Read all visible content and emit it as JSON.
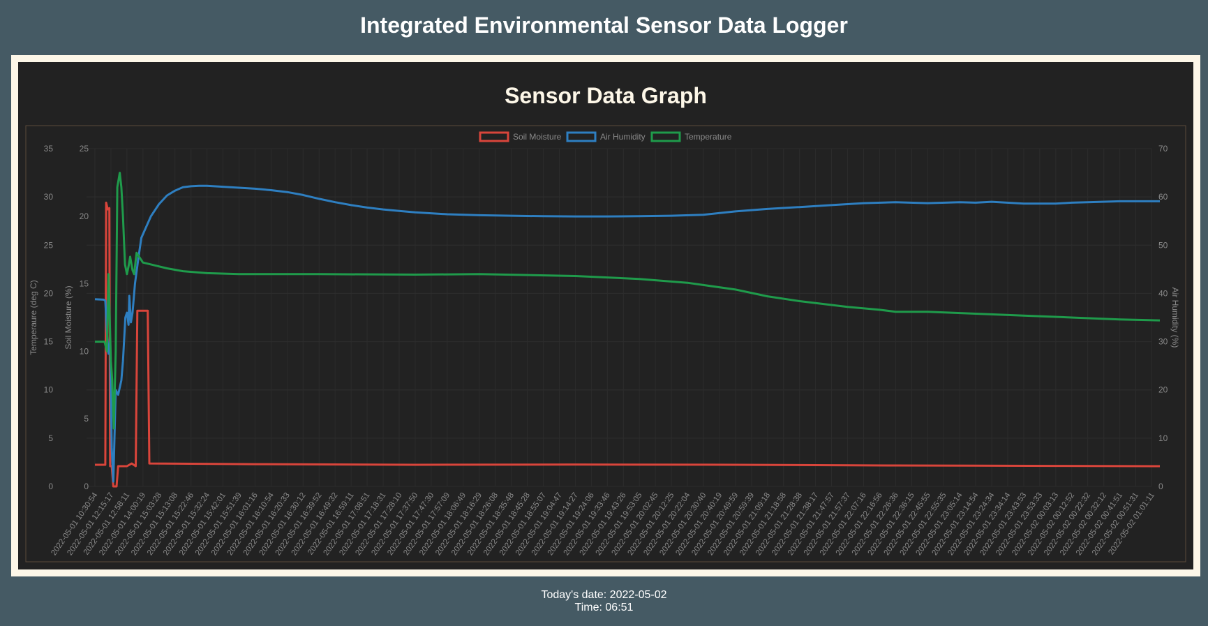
{
  "page": {
    "title": "Integrated Environmental Sensor Data Logger"
  },
  "footer": {
    "date_label": "Today's date: 2022-05-02",
    "time_label": "Time: 06:51"
  },
  "chart_data": {
    "type": "line",
    "title": "Sensor Data Graph",
    "legend": "top",
    "grid": true,
    "series": [
      {
        "name": "Soil Moisture",
        "axis": "Soil Moisture (%)",
        "color": "#d9453b"
      },
      {
        "name": "Air Humidity",
        "axis": "Air Humidity (%)",
        "color": "#2e7fc1"
      },
      {
        "name": "Temperature",
        "axis": "Temperaure (deg C)",
        "color": "#1f9b4b"
      }
    ],
    "axes": {
      "temperature": {
        "label": "Temperaure (deg C)",
        "range": [
          0,
          35
        ],
        "ticks": [
          "0",
          "5",
          "10",
          "15",
          "20",
          "25",
          "30",
          "35"
        ]
      },
      "soil": {
        "label": "Soil Moisture (%)",
        "range": [
          0,
          25
        ],
        "ticks": [
          "0",
          "5",
          "10",
          "15",
          "20",
          "25"
        ]
      },
      "humidity": {
        "label": "Air Humidity (%)",
        "range": [
          0,
          70
        ],
        "ticks": [
          "0",
          "10",
          "20",
          "30",
          "40",
          "50",
          "60",
          "70"
        ]
      }
    },
    "x_ticks": [
      "2022-05-01 10:30:54",
      "2022-05-01 12:15:17",
      "2022-05-01 12:58:11",
      "2022-05-01 14:00:19",
      "2022-05-01 15:03:28",
      "2022-05-01 15:13:08",
      "2022-05-01 15:22:46",
      "2022-05-01 15:32:24",
      "2022-05-01 15:42:01",
      "2022-05-01 15:51:39",
      "2022-05-01 16:01:16",
      "2022-05-01 16:10:54",
      "2022-05-01 16:20:33",
      "2022-05-01 16:30:12",
      "2022-05-01 16:39:52",
      "2022-05-01 16:49:32",
      "2022-05-01 16:59:11",
      "2022-05-01 17:08:51",
      "2022-05-01 17:18:31",
      "2022-05-01 17:28:10",
      "2022-05-01 17:37:50",
      "2022-05-01 17:47:30",
      "2022-05-01 17:57:09",
      "2022-05-01 18:06:49",
      "2022-05-01 18:16:29",
      "2022-05-01 18:26:08",
      "2022-05-01 18:35:48",
      "2022-05-01 18:45:28",
      "2022-05-01 18:55:07",
      "2022-05-01 19:04:47",
      "2022-05-01 19:14:27",
      "2022-05-01 19:24:06",
      "2022-05-01 19:33:46",
      "2022-05-01 19:43:26",
      "2022-05-01 19:53:05",
      "2022-05-01 20:02:45",
      "2022-05-01 20:12:25",
      "2022-05-01 20:22:04",
      "2022-05-01 20:30:40",
      "2022-05-01 20:40:19",
      "2022-05-01 20:49:59",
      "2022-05-01 20:59:39",
      "2022-05-01 21:09:18",
      "2022-05-01 21:18:58",
      "2022-05-01 21:28:38",
      "2022-05-01 21:38:17",
      "2022-05-01 21:47:57",
      "2022-05-01 21:57:37",
      "2022-05-01 22:07:16",
      "2022-05-01 22:16:56",
      "2022-05-01 22:26:36",
      "2022-05-01 22:36:15",
      "2022-05-01 22:45:55",
      "2022-05-01 22:55:35",
      "2022-05-01 23:05:14",
      "2022-05-01 23:14:54",
      "2022-05-01 23:24:34",
      "2022-05-01 23:34:14",
      "2022-05-01 23:43:53",
      "2022-05-01 23:53:33",
      "2022-05-02 00:03:13",
      "2022-05-02 00:12:52",
      "2022-05-02 00:22:32",
      "2022-05-02 00:32:12",
      "2022-05-02 00:41:51",
      "2022-05-02 00:51:31",
      "2022-05-02 01:01:11"
    ],
    "temperature_points": [
      [
        0,
        15
      ],
      [
        0.6,
        15
      ],
      [
        0.75,
        14
      ],
      [
        0.85,
        22
      ],
      [
        1.0,
        13
      ],
      [
        1.08,
        11
      ],
      [
        1.18,
        6
      ],
      [
        1.3,
        14
      ],
      [
        1.4,
        31
      ],
      [
        1.55,
        32.5
      ],
      [
        1.65,
        31
      ],
      [
        1.75,
        28
      ],
      [
        1.88,
        23
      ],
      [
        2.0,
        22
      ],
      [
        2.1,
        22.8
      ],
      [
        2.2,
        23.8
      ],
      [
        2.35,
        22.4
      ],
      [
        2.45,
        22
      ],
      [
        2.6,
        24.2
      ],
      [
        2.8,
        23.7
      ],
      [
        3.0,
        23.2
      ],
      [
        3.5,
        23
      ],
      [
        4.5,
        22.6
      ],
      [
        5.5,
        22.3
      ],
      [
        7,
        22.1
      ],
      [
        9,
        22
      ],
      [
        14,
        22
      ],
      [
        20,
        21.95
      ],
      [
        24,
        22
      ],
      [
        30,
        21.8
      ],
      [
        34,
        21.5
      ],
      [
        37,
        21.1
      ],
      [
        40,
        20.4
      ],
      [
        42,
        19.7
      ],
      [
        44,
        19.2
      ],
      [
        46,
        18.8
      ],
      [
        47,
        18.6
      ],
      [
        49,
        18.3
      ],
      [
        50,
        18.1
      ],
      [
        52,
        18.1
      ],
      [
        55,
        17.9
      ],
      [
        58,
        17.7
      ],
      [
        61,
        17.5
      ],
      [
        64,
        17.3
      ],
      [
        66.5,
        17.2
      ]
    ],
    "soil_points": [
      [
        0,
        1.6
      ],
      [
        0.65,
        1.6
      ],
      [
        0.7,
        21
      ],
      [
        0.8,
        20.5
      ],
      [
        0.9,
        20.6
      ],
      [
        0.95,
        1.5
      ],
      [
        1.05,
        1.5
      ],
      [
        1.15,
        0
      ],
      [
        1.35,
        0
      ],
      [
        1.45,
        1.5
      ],
      [
        2.0,
        1.5
      ],
      [
        2.3,
        1.7
      ],
      [
        2.55,
        1.5
      ],
      [
        2.65,
        13
      ],
      [
        3.3,
        13
      ],
      [
        3.4,
        1.7
      ],
      [
        10,
        1.65
      ],
      [
        20,
        1.6
      ],
      [
        30,
        1.62
      ],
      [
        40,
        1.6
      ],
      [
        50,
        1.55
      ],
      [
        60,
        1.52
      ],
      [
        66.5,
        1.5
      ]
    ],
    "humidity_points": [
      [
        0,
        38.8
      ],
      [
        0.55,
        38.7
      ],
      [
        0.65,
        38.5
      ],
      [
        0.75,
        32
      ],
      [
        0.85,
        27.5
      ],
      [
        0.95,
        30
      ],
      [
        1.05,
        8
      ],
      [
        1.15,
        1
      ],
      [
        1.3,
        20
      ],
      [
        1.45,
        19
      ],
      [
        1.55,
        20.5
      ],
      [
        1.65,
        22
      ],
      [
        1.75,
        26
      ],
      [
        1.85,
        32
      ],
      [
        1.9,
        35
      ],
      [
        2.0,
        36
      ],
      [
        2.1,
        33.5
      ],
      [
        2.15,
        39.5
      ],
      [
        2.25,
        34
      ],
      [
        2.35,
        36
      ],
      [
        2.5,
        42
      ],
      [
        2.7,
        47
      ],
      [
        2.9,
        51.5
      ],
      [
        3.1,
        53
      ],
      [
        3.5,
        56
      ],
      [
        4,
        58.5
      ],
      [
        4.5,
        60.3
      ],
      [
        5,
        61.3
      ],
      [
        5.5,
        62
      ],
      [
        6,
        62.2
      ],
      [
        6.5,
        62.3
      ],
      [
        7,
        62.3
      ],
      [
        8,
        62.1
      ],
      [
        9,
        61.9
      ],
      [
        10,
        61.7
      ],
      [
        11,
        61.4
      ],
      [
        12,
        61
      ],
      [
        13,
        60.4
      ],
      [
        14,
        59.6
      ],
      [
        15,
        58.9
      ],
      [
        16,
        58.3
      ],
      [
        17,
        57.8
      ],
      [
        18,
        57.4
      ],
      [
        19,
        57.1
      ],
      [
        20,
        56.8
      ],
      [
        22,
        56.4
      ],
      [
        24,
        56.2
      ],
      [
        26,
        56.1
      ],
      [
        28,
        56
      ],
      [
        30,
        55.95
      ],
      [
        32,
        55.95
      ],
      [
        34,
        56
      ],
      [
        36,
        56.1
      ],
      [
        38,
        56.3
      ],
      [
        40,
        57
      ],
      [
        42,
        57.5
      ],
      [
        44,
        57.9
      ],
      [
        46,
        58.3
      ],
      [
        48,
        58.7
      ],
      [
        50,
        58.9
      ],
      [
        52,
        58.7
      ],
      [
        54,
        58.9
      ],
      [
        55,
        58.8
      ],
      [
        56,
        59
      ],
      [
        58,
        58.6
      ],
      [
        60,
        58.6
      ],
      [
        61,
        58.8
      ],
      [
        62,
        58.9
      ],
      [
        64,
        59.1
      ],
      [
        66.5,
        59.1
      ]
    ]
  }
}
